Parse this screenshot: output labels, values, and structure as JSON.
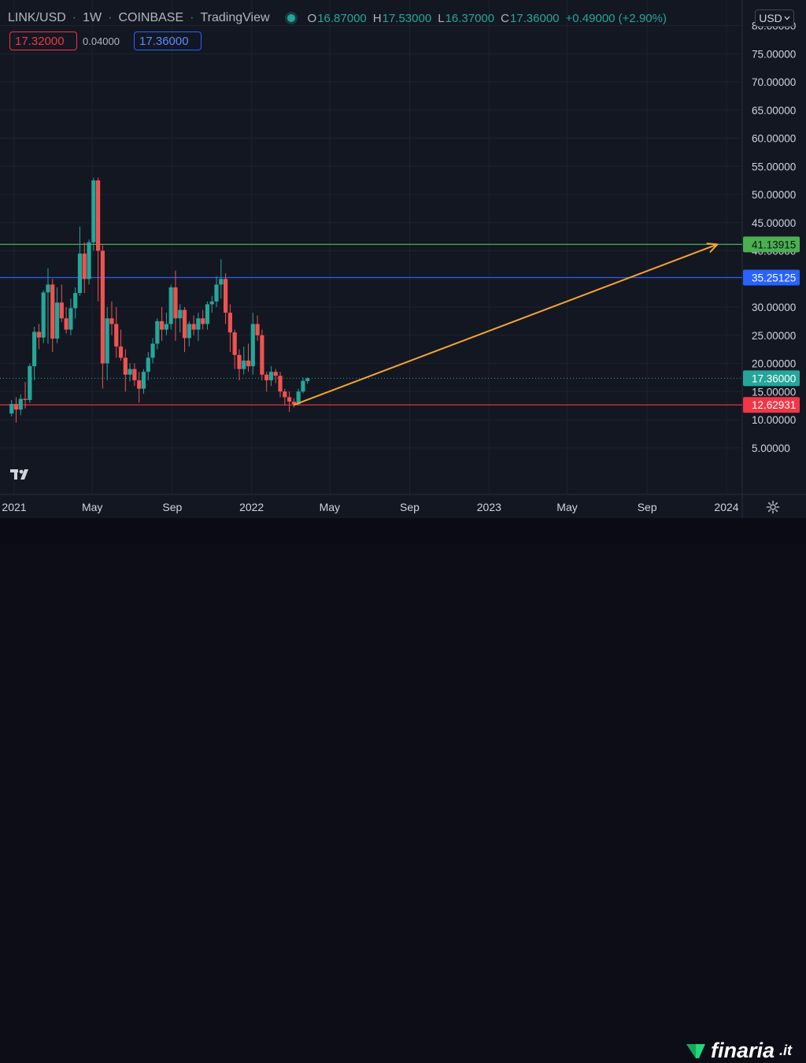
{
  "header": {
    "symbol": "LINK/USD",
    "interval": "1W",
    "exchange": "COINBASE",
    "source": "TradingView",
    "separator": "·",
    "ohlc": {
      "o_label": "O",
      "o_value": "16.87000",
      "h_label": "H",
      "h_value": "17.53000",
      "l_label": "L",
      "l_value": "16.37000",
      "c_label": "C",
      "c_value": "17.36000",
      "change": "+0.49000 (+2.90%)"
    },
    "bid": "17.32000",
    "spread": "0.04000",
    "ask": "17.36000",
    "currency": "USD"
  },
  "colors": {
    "background": "#131722",
    "up": "#26a69a",
    "down": "#ef5350",
    "green_line": "#4caf50",
    "blue_line": "#2962ff",
    "red_line": "#f23645",
    "arrow": "#f7a531"
  },
  "chart_data": {
    "type": "candlestick",
    "y_axis_ticks": [
      "5.00000",
      "10.00000",
      "15.00000",
      "20.00000",
      "25.00000",
      "30.00000",
      "35.00000",
      "40.00000",
      "45.00000",
      "50.00000",
      "55.00000",
      "60.00000",
      "65.00000",
      "70.00000",
      "75.00000",
      "80.00000"
    ],
    "x_axis_ticks": [
      "2021",
      "May",
      "Sep",
      "2022",
      "May",
      "Sep",
      "2023",
      "May",
      "Sep",
      "2024"
    ],
    "ylim": [
      0,
      85
    ],
    "horizontal_lines": [
      {
        "label": "41.13915",
        "value": 41.13915,
        "color": "#4caf50"
      },
      {
        "label": "35.25125",
        "value": 35.25125,
        "color": "#2962ff"
      },
      {
        "label": "12.62931",
        "value": 12.62931,
        "color": "#f23645"
      }
    ],
    "last_price": {
      "label": "17.36000",
      "value": 17.36
    },
    "trend_arrow": {
      "from_date": "2022-03-07",
      "from_value": 12.63,
      "to_date": "2023-12-18",
      "to_value": 41.14
    },
    "candles": [
      {
        "d": "2020-12-28",
        "o": 11.1,
        "h": 13.5,
        "l": 10.6,
        "c": 12.8
      },
      {
        "d": "2021-01-04",
        "o": 12.8,
        "h": 14.0,
        "l": 9.5,
        "c": 11.8
      },
      {
        "d": "2021-01-11",
        "o": 11.8,
        "h": 14.5,
        "l": 10.8,
        "c": 13.7
      },
      {
        "d": "2021-01-18",
        "o": 13.7,
        "h": 16.7,
        "l": 12.0,
        "c": 13.5
      },
      {
        "d": "2021-01-25",
        "o": 13.5,
        "h": 20.0,
        "l": 13.0,
        "c": 19.5
      },
      {
        "d": "2021-02-01",
        "o": 19.5,
        "h": 26.5,
        "l": 17.0,
        "c": 25.6
      },
      {
        "d": "2021-02-08",
        "o": 25.6,
        "h": 27.0,
        "l": 22.5,
        "c": 24.6
      },
      {
        "d": "2021-02-15",
        "o": 24.6,
        "h": 33.0,
        "l": 23.6,
        "c": 32.6
      },
      {
        "d": "2021-02-22",
        "o": 32.6,
        "h": 36.9,
        "l": 23.5,
        "c": 34.0
      },
      {
        "d": "2021-03-01",
        "o": 34.0,
        "h": 35.0,
        "l": 22.0,
        "c": 24.4
      },
      {
        "d": "2021-03-08",
        "o": 24.4,
        "h": 33.5,
        "l": 23.6,
        "c": 30.8
      },
      {
        "d": "2021-03-15",
        "o": 30.8,
        "h": 34.0,
        "l": 27.3,
        "c": 28.0
      },
      {
        "d": "2021-03-22",
        "o": 28.0,
        "h": 30.0,
        "l": 25.3,
        "c": 26.0
      },
      {
        "d": "2021-03-29",
        "o": 26.0,
        "h": 31.5,
        "l": 25.0,
        "c": 29.8
      },
      {
        "d": "2021-04-05",
        "o": 29.8,
        "h": 33.5,
        "l": 28.0,
        "c": 32.5
      },
      {
        "d": "2021-04-12",
        "o": 32.5,
        "h": 44.3,
        "l": 32.0,
        "c": 39.5
      },
      {
        "d": "2021-04-19",
        "o": 39.5,
        "h": 41.5,
        "l": 32.5,
        "c": 35.0
      },
      {
        "d": "2021-04-26",
        "o": 35.0,
        "h": 42.0,
        "l": 34.0,
        "c": 41.5
      },
      {
        "d": "2021-05-03",
        "o": 41.5,
        "h": 53.0,
        "l": 40.0,
        "c": 52.5
      },
      {
        "d": "2021-05-10",
        "o": 52.5,
        "h": 53.0,
        "l": 31.0,
        "c": 40.0
      },
      {
        "d": "2021-05-17",
        "o": 40.0,
        "h": 41.0,
        "l": 15.5,
        "c": 20.0
      },
      {
        "d": "2021-05-24",
        "o": 20.0,
        "h": 30.0,
        "l": 17.0,
        "c": 28.0
      },
      {
        "d": "2021-05-31",
        "o": 28.0,
        "h": 31.0,
        "l": 25.0,
        "c": 27.0
      },
      {
        "d": "2021-06-07",
        "o": 27.0,
        "h": 30.0,
        "l": 21.0,
        "c": 23.0
      },
      {
        "d": "2021-06-14",
        "o": 23.0,
        "h": 26.0,
        "l": 20.5,
        "c": 21.0
      },
      {
        "d": "2021-06-21",
        "o": 21.0,
        "h": 22.5,
        "l": 15.0,
        "c": 18.0
      },
      {
        "d": "2021-06-28",
        "o": 18.0,
        "h": 20.0,
        "l": 16.8,
        "c": 19.0
      },
      {
        "d": "2021-07-05",
        "o": 19.0,
        "h": 20.0,
        "l": 16.0,
        "c": 17.0
      },
      {
        "d": "2021-07-12",
        "o": 17.0,
        "h": 18.5,
        "l": 13.0,
        "c": 15.5
      },
      {
        "d": "2021-07-19",
        "o": 15.5,
        "h": 19.0,
        "l": 14.6,
        "c": 18.5
      },
      {
        "d": "2021-07-26",
        "o": 18.5,
        "h": 22.0,
        "l": 17.0,
        "c": 21.0
      },
      {
        "d": "2021-08-02",
        "o": 21.0,
        "h": 24.5,
        "l": 20.0,
        "c": 23.5
      },
      {
        "d": "2021-08-09",
        "o": 23.5,
        "h": 28.0,
        "l": 22.5,
        "c": 27.5
      },
      {
        "d": "2021-08-16",
        "o": 27.5,
        "h": 30.0,
        "l": 24.0,
        "c": 26.0
      },
      {
        "d": "2021-08-23",
        "o": 26.0,
        "h": 29.0,
        "l": 25.0,
        "c": 27.0
      },
      {
        "d": "2021-08-30",
        "o": 27.0,
        "h": 34.0,
        "l": 26.0,
        "c": 33.5
      },
      {
        "d": "2021-09-06",
        "o": 33.5,
        "h": 36.5,
        "l": 24.0,
        "c": 28.0
      },
      {
        "d": "2021-09-13",
        "o": 28.0,
        "h": 30.5,
        "l": 25.5,
        "c": 29.5
      },
      {
        "d": "2021-09-20",
        "o": 29.5,
        "h": 30.0,
        "l": 22.0,
        "c": 24.5
      },
      {
        "d": "2021-09-27",
        "o": 24.5,
        "h": 27.5,
        "l": 23.0,
        "c": 27.0
      },
      {
        "d": "2021-10-04",
        "o": 27.0,
        "h": 28.5,
        "l": 25.0,
        "c": 26.0
      },
      {
        "d": "2021-10-11",
        "o": 26.0,
        "h": 29.0,
        "l": 24.0,
        "c": 28.0
      },
      {
        "d": "2021-10-18",
        "o": 28.0,
        "h": 29.5,
        "l": 26.0,
        "c": 27.0
      },
      {
        "d": "2021-10-25",
        "o": 27.0,
        "h": 31.0,
        "l": 26.0,
        "c": 30.5
      },
      {
        "d": "2021-11-01",
        "o": 30.5,
        "h": 32.0,
        "l": 29.0,
        "c": 31.0
      },
      {
        "d": "2021-11-08",
        "o": 31.0,
        "h": 35.5,
        "l": 30.0,
        "c": 34.0
      },
      {
        "d": "2021-11-15",
        "o": 34.0,
        "h": 38.5,
        "l": 31.5,
        "c": 35.0
      },
      {
        "d": "2021-11-22",
        "o": 35.0,
        "h": 36.0,
        "l": 27.0,
        "c": 29.0
      },
      {
        "d": "2021-11-29",
        "o": 29.0,
        "h": 30.5,
        "l": 22.0,
        "c": 25.5
      },
      {
        "d": "2021-12-06",
        "o": 25.5,
        "h": 26.0,
        "l": 19.0,
        "c": 21.5
      },
      {
        "d": "2021-12-13",
        "o": 21.5,
        "h": 22.5,
        "l": 17.0,
        "c": 19.0
      },
      {
        "d": "2021-12-20",
        "o": 19.0,
        "h": 23.0,
        "l": 18.0,
        "c": 20.5
      },
      {
        "d": "2021-12-27",
        "o": 20.5,
        "h": 23.5,
        "l": 18.5,
        "c": 19.5
      },
      {
        "d": "2022-01-03",
        "o": 19.5,
        "h": 29.0,
        "l": 18.0,
        "c": 27.0
      },
      {
        "d": "2022-01-10",
        "o": 27.0,
        "h": 28.5,
        "l": 24.0,
        "c": 25.0
      },
      {
        "d": "2022-01-17",
        "o": 25.0,
        "h": 26.0,
        "l": 17.0,
        "c": 18.0
      },
      {
        "d": "2022-01-24",
        "o": 18.0,
        "h": 18.5,
        "l": 15.0,
        "c": 17.0
      },
      {
        "d": "2022-01-31",
        "o": 17.0,
        "h": 19.5,
        "l": 16.0,
        "c": 18.5
      },
      {
        "d": "2022-02-07",
        "o": 18.5,
        "h": 19.0,
        "l": 16.5,
        "c": 17.8
      },
      {
        "d": "2022-02-14",
        "o": 17.8,
        "h": 18.5,
        "l": 14.0,
        "c": 15.0
      },
      {
        "d": "2022-02-21",
        "o": 15.0,
        "h": 15.5,
        "l": 12.5,
        "c": 14.0
      },
      {
        "d": "2022-02-28",
        "o": 14.0,
        "h": 15.0,
        "l": 11.4,
        "c": 13.2
      },
      {
        "d": "2022-03-07",
        "o": 13.2,
        "h": 13.8,
        "l": 12.2,
        "c": 12.8
      },
      {
        "d": "2022-03-14",
        "o": 12.8,
        "h": 15.5,
        "l": 12.5,
        "c": 15.0
      },
      {
        "d": "2022-03-21",
        "o": 15.0,
        "h": 17.5,
        "l": 14.7,
        "c": 16.9
      },
      {
        "d": "2022-03-28",
        "o": 16.87,
        "h": 17.53,
        "l": 16.37,
        "c": 17.36
      }
    ]
  },
  "footer": {
    "brand": "finaria",
    "tld": ".it"
  }
}
